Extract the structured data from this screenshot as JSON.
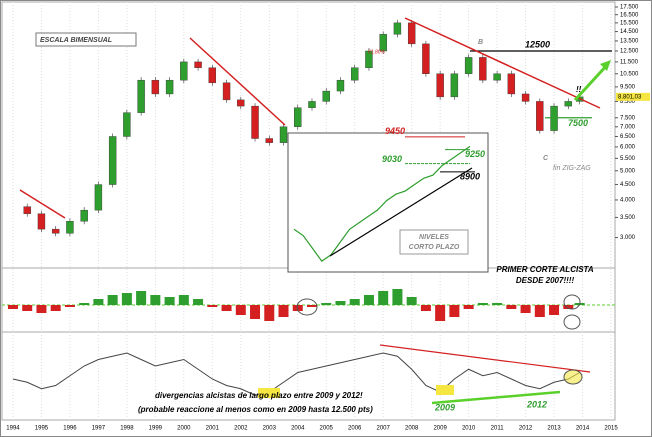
{
  "chart_data": [
    {
      "type": "candlestick",
      "annotations": [
        "ESCALA BIMENSUAL",
        "B",
        "C",
        "fin ZIG-ZAG",
        "!!",
        "61,80%"
      ],
      "x": [
        1994.0,
        1994.5,
        1995.0,
        1995.5,
        1996.0,
        1996.5,
        1997.0,
        1997.5,
        1998.0,
        1998.5,
        1999.0,
        1999.5,
        2000.0,
        2000.5,
        2001.0,
        2001.5,
        2002.0,
        2002.5,
        2003.0,
        2003.5,
        2004.0,
        2004.5,
        2005.0,
        2005.5,
        2006.0,
        2006.5,
        2007.0,
        2007.5,
        2008.0,
        2008.5,
        2009.0,
        2009.5,
        2010.0,
        2010.5,
        2011.0,
        2011.5,
        2012.0,
        2012.5,
        2013.0,
        2013.5,
        2013.9
      ],
      "series": [
        {
          "up_color": "#2e9e2e",
          "down_color": "#d42020",
          "values": [
            3800,
            3600,
            3200,
            3100,
            3400,
            3700,
            4500,
            6500,
            7800,
            10000,
            9000,
            10000,
            11500,
            11000,
            9800,
            8600,
            8200,
            6400,
            6200,
            7000,
            8100,
            8500,
            9200,
            10000,
            11000,
            12500,
            14200,
            15500,
            13200,
            10500,
            8800,
            10500,
            11900,
            10000,
            10500,
            9000,
            8500,
            6800,
            8200,
            8500,
            8801.03
          ]
        }
      ],
      "log_y": true,
      "ylim": [
        2900,
        17500
      ],
      "yticks": [
        {
          "value": 3000,
          "label": "3.000"
        },
        {
          "value": 3500,
          "label": "3.500"
        },
        {
          "value": 4000,
          "label": "4.000"
        },
        {
          "value": 4500,
          "label": "4.500"
        },
        {
          "value": 5000,
          "label": "5.000"
        },
        {
          "value": 5500,
          "label": "5.500"
        },
        {
          "value": 6000,
          "label": "6.000"
        },
        {
          "value": 6500,
          "label": "6.500"
        },
        {
          "value": 7000,
          "label": "7.000"
        },
        {
          "value": 7500,
          "label": "7.500"
        },
        {
          "value": 8500,
          "label": "8.500"
        },
        {
          "value": 9500,
          "label": "9.500"
        },
        {
          "value": 10500,
          "label": "10.500"
        },
        {
          "value": 11500,
          "label": "11.500"
        },
        {
          "value": 12500,
          "label": "12.500"
        },
        {
          "value": 13500,
          "label": "13.500"
        },
        {
          "value": 14500,
          "label": "14.500"
        },
        {
          "value": 15500,
          "label": "15.500"
        },
        {
          "value": 16500,
          "label": "16.500"
        },
        {
          "value": 17500,
          "label": "17.500"
        }
      ],
      "xlim": [
        1993.65,
        2015.14
      ],
      "xticks": [
        1994,
        1995,
        1996,
        1997,
        1998,
        1999,
        2000,
        2001,
        2002,
        2003,
        2004,
        2005,
        2006,
        2007,
        2008,
        2009,
        2010,
        2011,
        2012,
        2013,
        2014,
        2015
      ],
      "levels": [
        {
          "value": 12500,
          "label": "12500",
          "color": "#000000"
        },
        {
          "value": 7500,
          "label": "7500",
          "color": "#2e9e2e"
        }
      ],
      "last_price": {
        "value": 8801.03,
        "label": "8.801,03"
      }
    },
    {
      "type": "line",
      "annotations": [
        "NIVELES",
        "CORTO PLAZO"
      ],
      "color": "#2e9e2e",
      "values": [
        8000,
        7900,
        7700,
        7500,
        7600,
        7800,
        8000,
        8100,
        8200,
        8300,
        8450,
        8550,
        8600,
        8700,
        8800,
        8850,
        9000,
        9100,
        9200,
        9300
      ],
      "ylim": [
        7330,
        9510
      ],
      "levels": [
        {
          "value": 9450,
          "label": "9450",
          "color": "#d42020"
        },
        {
          "value": 9250,
          "label": "9250",
          "color": "#2e9e2e"
        },
        {
          "value": 9030,
          "label": "9030",
          "color": "#2e9e2e"
        },
        {
          "value": 8900,
          "label": "8900",
          "color": "#000000"
        }
      ]
    },
    {
      "type": "bar",
      "annotations": [
        "PRIMER CORTE ALCISTA",
        "DESDE 2007!!!!"
      ],
      "up_color": "#2e9e2e",
      "down_color": "#d42020",
      "values": [
        -0.2,
        -0.3,
        -0.4,
        -0.3,
        -0.1,
        0.1,
        0.3,
        0.5,
        0.6,
        0.7,
        0.5,
        0.4,
        0.5,
        0.3,
        -0.1,
        -0.3,
        -0.5,
        -0.7,
        -0.8,
        -0.6,
        -0.3,
        -0.1,
        0.1,
        0.2,
        0.3,
        0.5,
        0.7,
        0.8,
        0.4,
        -0.3,
        -0.8,
        -0.6,
        -0.2,
        0.1,
        0.1,
        -0.2,
        -0.4,
        -0.6,
        -0.5,
        -0.2,
        0.1
      ],
      "ylim": [
        -1,
        1
      ]
    },
    {
      "type": "line",
      "annotations": [
        "divergencias alcistas de largo plazo entre 2009 y 2012!",
        "(probable reaccione al menos como en 2009 hasta 12.500 pts)",
        "2009",
        "2012"
      ],
      "color": "#444444",
      "values": [
        40,
        35,
        25,
        30,
        45,
        60,
        70,
        75,
        80,
        70,
        60,
        65,
        70,
        55,
        40,
        30,
        25,
        15,
        20,
        35,
        50,
        55,
        60,
        65,
        70,
        75,
        80,
        75,
        55,
        30,
        20,
        40,
        55,
        45,
        50,
        40,
        30,
        25,
        35,
        40,
        50
      ],
      "ylim": [
        0,
        100
      ]
    }
  ]
}
